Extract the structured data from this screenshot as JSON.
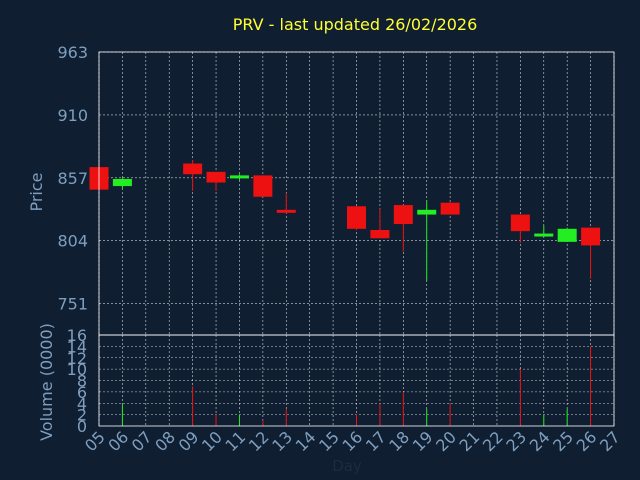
{
  "colors": {
    "background": "#0f1e30",
    "title": "#ffff33",
    "axis_text": "#7f9fbf",
    "label_text": "#1e2c3c",
    "frame": "#ffffff",
    "grid": "#ffffff",
    "up": "#22ee22",
    "down": "#ee1111"
  },
  "chart_data": [
    {
      "type": "candlestick",
      "title": "PRV - last updated 26/02/2026",
      "ylabel": "Price",
      "ylim": [
        724.5,
        963
      ],
      "yticks": [
        963,
        910,
        857,
        804,
        751
      ],
      "grid": true,
      "series": [
        {
          "day": "05",
          "open": 866,
          "high": 869,
          "low": 847,
          "close": 847
        },
        {
          "day": "06",
          "open": 850,
          "high": 857,
          "low": 847,
          "close": 856
        },
        {
          "day": "09",
          "open": 869,
          "high": 872,
          "low": 846,
          "close": 860
        },
        {
          "day": "10",
          "open": 862,
          "high": 862,
          "low": 846,
          "close": 853
        },
        {
          "day": "11",
          "open": 857,
          "high": 860,
          "low": 855,
          "close": 859
        },
        {
          "day": "12",
          "open": 859,
          "high": 859,
          "low": 843,
          "close": 841
        },
        {
          "day": "13",
          "open": 830,
          "high": 844,
          "low": 827,
          "close": 828
        },
        {
          "day": "16",
          "open": 833,
          "high": 833,
          "low": 813,
          "close": 814
        },
        {
          "day": "17",
          "open": 813,
          "high": 831,
          "low": 806,
          "close": 806
        },
        {
          "day": "18",
          "open": 834,
          "high": 834,
          "low": 795,
          "close": 818
        },
        {
          "day": "19",
          "open": 826,
          "high": 838,
          "low": 770,
          "close": 830
        },
        {
          "day": "20",
          "open": 836,
          "high": 837,
          "low": 826,
          "close": 826
        },
        {
          "day": "23",
          "open": 826,
          "high": 826,
          "low": 802,
          "close": 812
        },
        {
          "day": "24",
          "open": 808,
          "high": 817,
          "low": 807,
          "close": 810
        },
        {
          "day": "25",
          "open": 803,
          "high": 815,
          "low": 803,
          "close": 814
        },
        {
          "day": "26",
          "open": 815,
          "high": 815,
          "low": 772,
          "close": 800
        }
      ]
    },
    {
      "type": "bar",
      "ylabel": "Volume (0000)",
      "xlabel": "Day",
      "ylim": [
        0,
        16
      ],
      "yticks": [
        16,
        14,
        12,
        10,
        8,
        6,
        4,
        2,
        0
      ],
      "categories": [
        "05",
        "06",
        "07",
        "08",
        "09",
        "10",
        "11",
        "12",
        "13",
        "14",
        "15",
        "16",
        "17",
        "18",
        "19",
        "20",
        "21",
        "22",
        "23",
        "24",
        "25",
        "26",
        "27"
      ],
      "values": [
        {
          "day": "06",
          "value": 4,
          "dir": "up"
        },
        {
          "day": "09",
          "value": 7,
          "dir": "down"
        },
        {
          "day": "10",
          "value": 2,
          "dir": "down"
        },
        {
          "day": "11",
          "value": 2,
          "dir": "up"
        },
        {
          "day": "12",
          "value": 1,
          "dir": "down"
        },
        {
          "day": "13",
          "value": 3,
          "dir": "down"
        },
        {
          "day": "16",
          "value": 2,
          "dir": "down"
        },
        {
          "day": "17",
          "value": 4,
          "dir": "down"
        },
        {
          "day": "18",
          "value": 6,
          "dir": "down"
        },
        {
          "day": "19",
          "value": 3,
          "dir": "up"
        },
        {
          "day": "20",
          "value": 4,
          "dir": "down"
        },
        {
          "day": "23",
          "value": 10,
          "dir": "down"
        },
        {
          "day": "24",
          "value": 2,
          "dir": "up"
        },
        {
          "day": "25",
          "value": 3,
          "dir": "up"
        },
        {
          "day": "26",
          "value": 14,
          "dir": "down"
        }
      ]
    }
  ]
}
